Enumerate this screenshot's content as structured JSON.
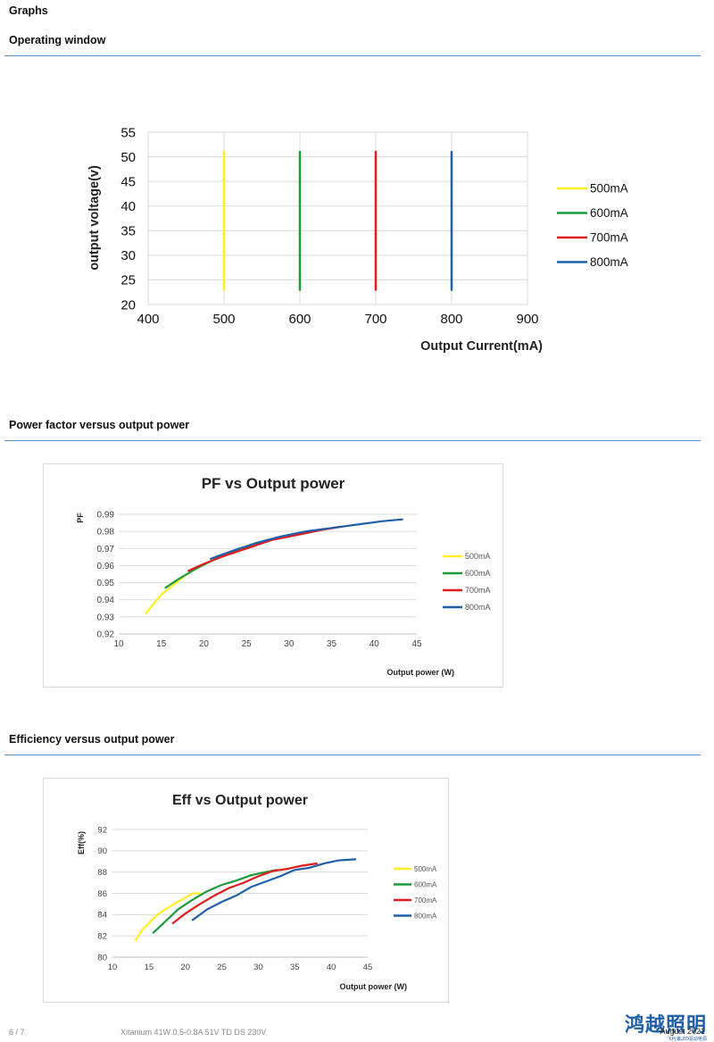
{
  "page": {
    "title": "Graphs",
    "sections": [
      "Operating window",
      "Power factor versus output power",
      "Efficiency versus output power"
    ]
  },
  "footer": {
    "page_num": "6 / 7",
    "doc_title": "Xitanium 41W 0.5-0.8A 51V TD DS 230V",
    "date": "August 2021",
    "logo_text": "鸿越照明",
    "logo_sub": "飞利浦LED驱动电源"
  },
  "colors": {
    "500mA": "#ffee22",
    "600mA": "#1d9b3a",
    "700mA": "#e01c1c",
    "800mA": "#1f5fa8",
    "rule": "#5b8fc7"
  },
  "chart_data": [
    {
      "type": "line",
      "title": "",
      "xlabel": "Output Current(mA)",
      "ylabel": "output voltage(v)",
      "xlim": [
        400,
        900
      ],
      "ylim": [
        20,
        55
      ],
      "xticks": [
        400,
        500,
        600,
        700,
        800,
        900
      ],
      "yticks": [
        20,
        25,
        30,
        35,
        40,
        45,
        50,
        55
      ],
      "grid": true,
      "legend": "right",
      "series": [
        {
          "name": "500mA",
          "x": [
            500,
            500
          ],
          "y": [
            23,
            51
          ]
        },
        {
          "name": "600mA",
          "x": [
            600,
            600
          ],
          "y": [
            23,
            51
          ]
        },
        {
          "name": "700mA",
          "x": [
            700,
            700
          ],
          "y": [
            23,
            51
          ]
        },
        {
          "name": "800mA",
          "x": [
            800,
            800
          ],
          "y": [
            23,
            51
          ]
        }
      ]
    },
    {
      "type": "line",
      "title": "PF vs Output power",
      "xlabel": "Output power (W)",
      "ylabel": "PF",
      "xlim": [
        10,
        45
      ],
      "ylim": [
        0.92,
        0.99
      ],
      "xticks": [
        10,
        15,
        20,
        25,
        30,
        35,
        40,
        45
      ],
      "yticks": [
        0.92,
        0.93,
        0.94,
        0.95,
        0.96,
        0.97,
        0.98,
        0.99
      ],
      "grid": true,
      "legend": "right",
      "series": [
        {
          "name": "500mA",
          "x": [
            13.2,
            14.0,
            15.0,
            16.0,
            17.0,
            18.0,
            19.0,
            20.0,
            21.0,
            22.0
          ],
          "y": [
            0.932,
            0.937,
            0.943,
            0.947,
            0.951,
            0.955,
            0.958,
            0.961,
            0.963,
            0.965
          ]
        },
        {
          "name": "600mA",
          "x": [
            15.5,
            17.0,
            19.0,
            21.0,
            23.0,
            25.0,
            27.0
          ],
          "y": [
            0.947,
            0.952,
            0.958,
            0.963,
            0.967,
            0.971,
            0.974
          ]
        },
        {
          "name": "700mA",
          "x": [
            18.2,
            20.0,
            22.0,
            25.0,
            28.0,
            31.0,
            34.0,
            36.5
          ],
          "y": [
            0.957,
            0.961,
            0.965,
            0.97,
            0.975,
            0.978,
            0.981,
            0.983
          ]
        },
        {
          "name": "800mA",
          "x": [
            20.8,
            23.0,
            26.0,
            29.0,
            32.0,
            35.0,
            38.0,
            41.0,
            43.3
          ],
          "y": [
            0.964,
            0.968,
            0.973,
            0.977,
            0.98,
            0.982,
            0.984,
            0.986,
            0.987
          ]
        }
      ]
    },
    {
      "type": "line",
      "title": "Eff vs Output power",
      "xlabel": "Output power (W)",
      "ylabel": "Eff(%)",
      "xlim": [
        10,
        45
      ],
      "ylim": [
        80,
        92
      ],
      "xticks": [
        10,
        15,
        20,
        25,
        30,
        35,
        40,
        45
      ],
      "yticks": [
        80,
        82,
        84,
        86,
        88,
        90,
        92
      ],
      "grid": true,
      "legend": "right",
      "series": [
        {
          "name": "500mA",
          "x": [
            13.2,
            14.0,
            15.0,
            16.0,
            17.0,
            18.0,
            19.0,
            20.0,
            21.0,
            22.0
          ],
          "y": [
            81.6,
            82.5,
            83.2,
            83.9,
            84.4,
            84.8,
            85.2,
            85.6,
            86.0,
            86.0
          ]
        },
        {
          "name": "600mA",
          "x": [
            15.6,
            17.0,
            19.0,
            21.0,
            23.0,
            25.0,
            27.0,
            29.0,
            31.0,
            32.5
          ],
          "y": [
            82.3,
            83.2,
            84.5,
            85.4,
            86.2,
            86.8,
            87.2,
            87.7,
            88.0,
            88.2
          ]
        },
        {
          "name": "700mA",
          "x": [
            18.3,
            20.0,
            22.0,
            24.0,
            26.0,
            28.0,
            30.0,
            32.0,
            34.0,
            36.0,
            38.0
          ],
          "y": [
            83.2,
            84.1,
            85.0,
            85.8,
            86.5,
            87.0,
            87.6,
            88.1,
            88.3,
            88.6,
            88.8
          ]
        },
        {
          "name": "800mA",
          "x": [
            21.0,
            23.0,
            25.0,
            27.0,
            29.0,
            31.0,
            33.0,
            35.0,
            37.0,
            39.0,
            41.0,
            43.3
          ],
          "y": [
            83.5,
            84.5,
            85.2,
            85.8,
            86.6,
            87.1,
            87.6,
            88.2,
            88.4,
            88.8,
            89.1,
            89.2
          ]
        }
      ]
    }
  ]
}
